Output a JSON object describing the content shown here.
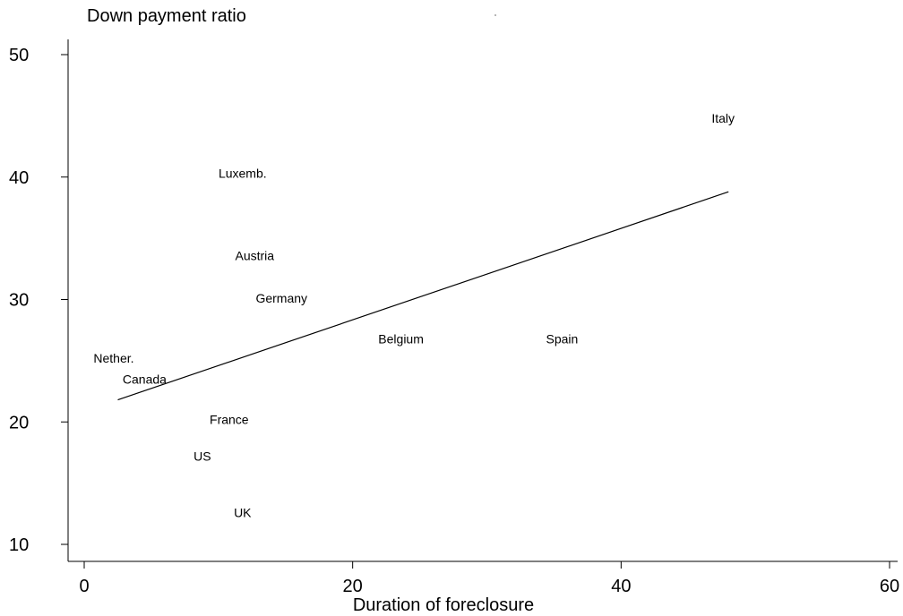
{
  "chart_data": {
    "type": "scatter",
    "title": "",
    "ylabel": "Down payment ratio",
    "xlabel": "Duration of  foreclosure",
    "xlim": [
      0,
      60
    ],
    "ylim": [
      10,
      50
    ],
    "xticks": [
      0,
      20,
      40,
      60
    ],
    "yticks": [
      10,
      20,
      30,
      40,
      50
    ],
    "grid": false,
    "points": [
      {
        "label": "Italy",
        "x": 47.6,
        "y": 44.8
      },
      {
        "label": "Luxemb.",
        "x": 11.8,
        "y": 40.3
      },
      {
        "label": "Austria",
        "x": 12.7,
        "y": 33.6
      },
      {
        "label": "Germany",
        "x": 14.7,
        "y": 30.1
      },
      {
        "label": "Belgium",
        "x": 23.6,
        "y": 26.8
      },
      {
        "label": "Spain",
        "x": 35.6,
        "y": 26.8
      },
      {
        "label": "Nether.",
        "x": 2.2,
        "y": 25.2
      },
      {
        "label": "Canada",
        "x": 4.5,
        "y": 23.5
      },
      {
        "label": "France",
        "x": 10.8,
        "y": 20.2
      },
      {
        "label": "US",
        "x": 8.8,
        "y": 17.2
      },
      {
        "label": "UK",
        "x": 11.8,
        "y": 12.6
      }
    ],
    "fit_line": {
      "x": [
        2.5,
        48.0
      ],
      "y": [
        21.8,
        38.8
      ]
    }
  }
}
